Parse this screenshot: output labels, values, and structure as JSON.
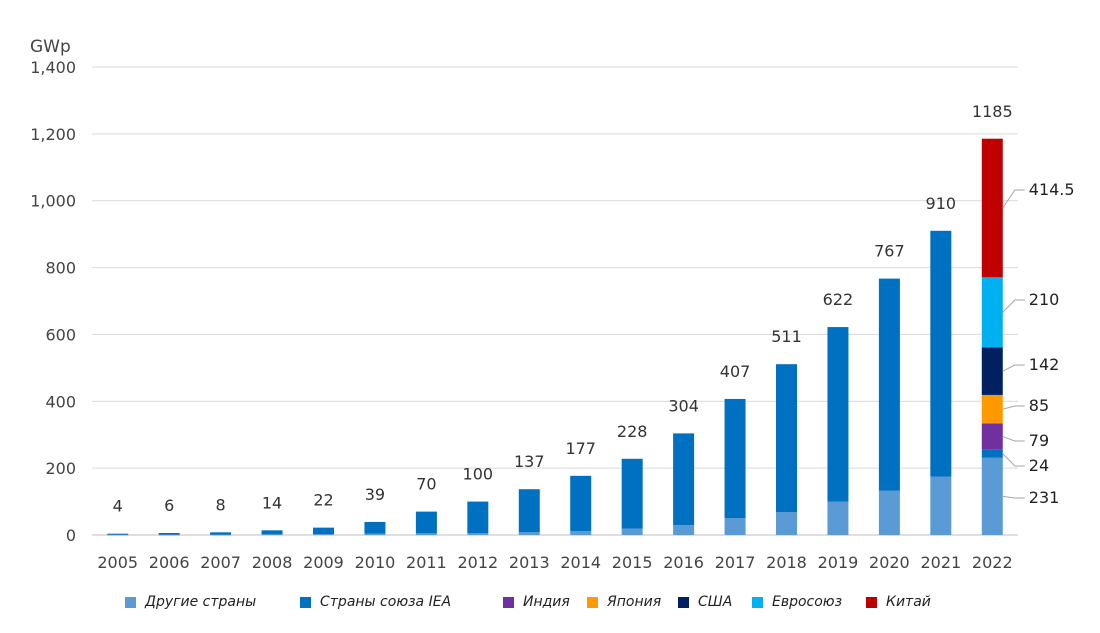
{
  "chart_data": {
    "type": "bar",
    "stacked": true,
    "unit_label": "GWp",
    "ylim": [
      0,
      1400
    ],
    "yticks": [
      "0",
      "200",
      "400",
      "600",
      "800",
      "1,000",
      "1,200",
      "1,400"
    ],
    "ytick_values": [
      0,
      200,
      400,
      600,
      800,
      1000,
      1200,
      1400
    ],
    "grid": true,
    "legend_position": "bottom",
    "categories": [
      "2005",
      "2006",
      "2007",
      "2008",
      "2009",
      "2010",
      "2011",
      "2012",
      "2013",
      "2014",
      "2015",
      "2016",
      "2017",
      "2018",
      "2019",
      "2020",
      "2021",
      "2022"
    ],
    "totals": [
      4,
      6,
      8,
      14,
      22,
      39,
      70,
      100,
      137,
      177,
      228,
      304,
      407,
      511,
      622,
      767,
      910,
      1185
    ],
    "series": [
      {
        "name": "Другие страны",
        "color": "#5B9BD5",
        "values": [
          1,
          1,
          1,
          2,
          3,
          4,
          5,
          6,
          9,
          12,
          19,
          30,
          50,
          68,
          100,
          133,
          175,
          231
        ]
      },
      {
        "name": "Страны союза IEA",
        "color": "#0070C0",
        "values": [
          3,
          5,
          7,
          12,
          19,
          35,
          65,
          94,
          128,
          165,
          209,
          274,
          357,
          443,
          522,
          634,
          735,
          24
        ]
      },
      {
        "name": "Индия",
        "color": "#7030A0",
        "values": [
          0,
          0,
          0,
          0,
          0,
          0,
          0,
          0,
          0,
          0,
          0,
          0,
          0,
          0,
          0,
          0,
          0,
          79
        ]
      },
      {
        "name": "Япония",
        "color": "#FF9900",
        "values": [
          0,
          0,
          0,
          0,
          0,
          0,
          0,
          0,
          0,
          0,
          0,
          0,
          0,
          0,
          0,
          0,
          0,
          85
        ]
      },
      {
        "name": "США",
        "color": "#002060",
        "values": [
          0,
          0,
          0,
          0,
          0,
          0,
          0,
          0,
          0,
          0,
          0,
          0,
          0,
          0,
          0,
          0,
          0,
          142
        ]
      },
      {
        "name": "Евросоюз",
        "color": "#00B0F0",
        "values": [
          0,
          0,
          0,
          0,
          0,
          0,
          0,
          0,
          0,
          0,
          0,
          0,
          0,
          0,
          0,
          0,
          0,
          210
        ]
      },
      {
        "name": "Китай",
        "color": "#C00000",
        "values": [
          0,
          0,
          0,
          0,
          0,
          0,
          0,
          0,
          0,
          0,
          0,
          0,
          0,
          0,
          0,
          0,
          0,
          414.5
        ]
      }
    ],
    "segment_labels_2022": [
      "231",
      "24",
      "79",
      "85",
      "142",
      "210",
      "414.5"
    ],
    "total_labels": [
      "4",
      "6",
      "8",
      "14",
      "22",
      "39",
      "70",
      "100",
      "137",
      "177",
      "228",
      "304",
      "407",
      "511",
      "622",
      "767",
      "910",
      "1185"
    ]
  }
}
